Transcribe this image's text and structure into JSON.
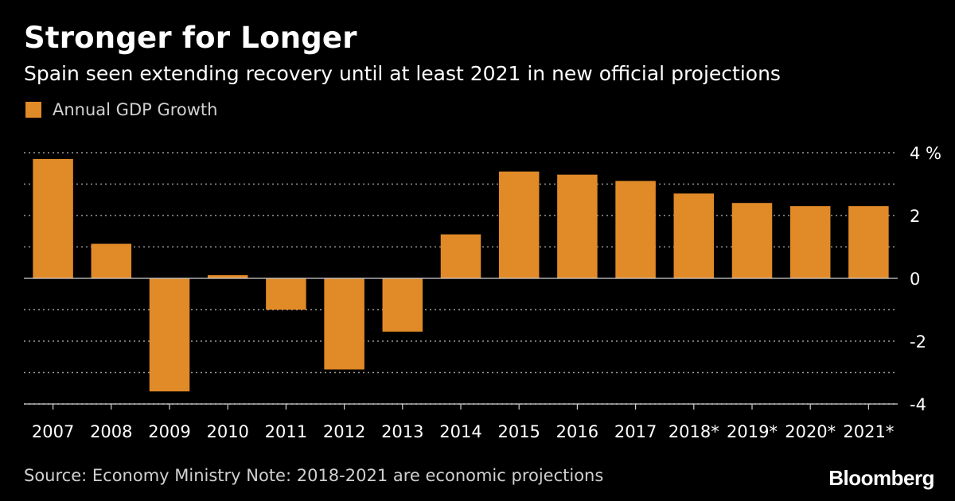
{
  "header": {
    "title": "Stronger for Longer",
    "subtitle": "Spain seen extending recovery until at least 2021 in new official projections"
  },
  "footer": {
    "source": "Source: Economy Ministry Note: 2018-2021 are economic projections",
    "brand": "Bloomberg"
  },
  "colors": {
    "bar": "#e08a28",
    "grid": "#9a9a9a",
    "axis": "#cfcfcf"
  },
  "chart_data": {
    "type": "bar",
    "title": "Stronger for Longer",
    "subtitle": "Spain seen extending recovery until at least 2021 in new official projections",
    "xlabel": "",
    "ylabel": "",
    "ylim": [
      -4,
      4
    ],
    "grid": true,
    "legend": "top-left",
    "y_ticks": [
      {
        "value": 4,
        "label": "4 %"
      },
      {
        "value": 2,
        "label": "2"
      },
      {
        "value": 0,
        "label": "0"
      },
      {
        "value": -2,
        "label": "-2"
      },
      {
        "value": -4,
        "label": "-4"
      }
    ],
    "categories": [
      "2007",
      "2008",
      "2009",
      "2010",
      "2011",
      "2012",
      "2013",
      "2014",
      "2015",
      "2016",
      "2017",
      "2018*",
      "2019*",
      "2020*",
      "2021*"
    ],
    "series": [
      {
        "name": "Annual GDP Growth",
        "values": [
          3.8,
          1.1,
          -3.6,
          0.1,
          -1.0,
          -2.9,
          -1.7,
          1.4,
          3.4,
          3.3,
          3.1,
          2.7,
          2.4,
          2.3,
          2.3
        ]
      }
    ]
  }
}
